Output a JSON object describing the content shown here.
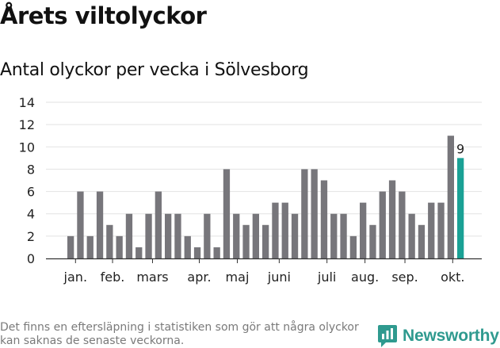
{
  "title": "Årets viltolyckor",
  "subtitle": "Antal olyckor per vecka i Sölvesborg",
  "footnote": "Det finns en eftersläpning i statistiken som gör att några olyckor kan saknas de senaste veckorna.",
  "brand": {
    "name": "Newsworthy",
    "color": "#2f9a8f",
    "icon": "newsworthy-chart-bubble-icon"
  },
  "chart_data": {
    "type": "bar",
    "title": "Antal olyckor per vecka i Sölvesborg",
    "xlabel": "",
    "ylabel": "",
    "ylim": [
      0,
      14
    ],
    "yticks": [
      0,
      2,
      4,
      6,
      8,
      10,
      12,
      14
    ],
    "grid": true,
    "values": [
      2,
      6,
      2,
      6,
      3,
      2,
      4,
      1,
      4,
      6,
      4,
      4,
      2,
      1,
      4,
      1,
      8,
      4,
      3,
      4,
      3,
      5,
      5,
      4,
      8,
      8,
      7,
      4,
      4,
      2,
      5,
      3,
      6,
      7,
      6,
      4,
      3,
      5,
      5,
      11,
      9
    ],
    "month_labels": [
      {
        "label": "jan.",
        "bar_index": 0.5
      },
      {
        "label": "feb.",
        "bar_index": 4.3
      },
      {
        "label": "mars",
        "bar_index": 8.4
      },
      {
        "label": "apr.",
        "bar_index": 13.2
      },
      {
        "label": "maj",
        "bar_index": 17.1
      },
      {
        "label": "juni",
        "bar_index": 21.4
      },
      {
        "label": "juli",
        "bar_index": 26.3
      },
      {
        "label": "aug.",
        "bar_index": 30.2
      },
      {
        "label": "sep.",
        "bar_index": 34.3
      },
      {
        "label": "okt.",
        "bar_index": 39.2
      }
    ],
    "highlight": {
      "bar_index": 40,
      "label": "9",
      "color": "#1aa195"
    },
    "bar_color": "#77767b"
  }
}
